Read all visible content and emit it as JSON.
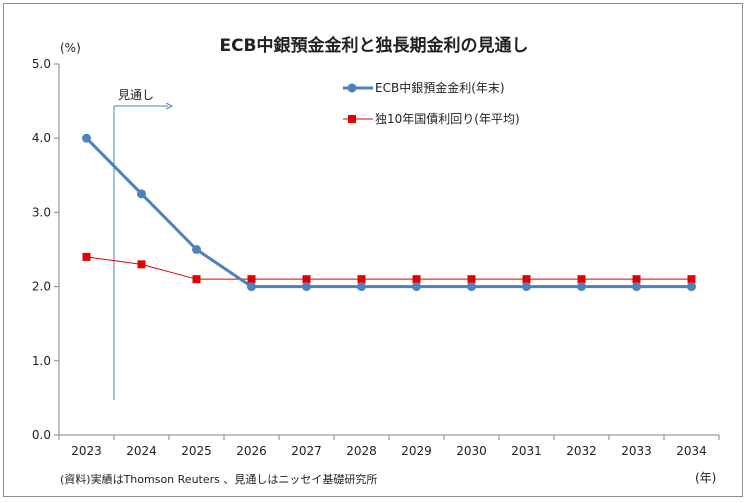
{
  "chart_data": {
    "type": "line",
    "title": "ECB中銀預金金利と独長期金利の見通し",
    "y_unit": "(%)",
    "x_unit": "(年)",
    "categories": [
      "2023",
      "2024",
      "2025",
      "2026",
      "2027",
      "2028",
      "2029",
      "2030",
      "2031",
      "2032",
      "2033",
      "2034"
    ],
    "ylim": [
      0,
      5
    ],
    "yticks": [
      "0.0",
      "1.0",
      "2.0",
      "3.0",
      "4.0",
      "5.0"
    ],
    "series": [
      {
        "name": "ECB中銀預金金利(年末)",
        "color": "#4f81bd",
        "marker": "circle",
        "values": [
          4.0,
          3.25,
          2.5,
          2.0,
          2.0,
          2.0,
          2.0,
          2.0,
          2.0,
          2.0,
          2.0,
          2.0
        ]
      },
      {
        "name": "独10年国債利回り(年平均)",
        "color": "#e30000",
        "marker": "square",
        "values": [
          2.4,
          2.3,
          2.1,
          2.1,
          2.1,
          2.1,
          2.1,
          2.1,
          2.1,
          2.1,
          2.1,
          2.1
        ]
      }
    ],
    "forecast_label": "見通し",
    "grid": false,
    "legend_position": "top-right",
    "source_note": "(資料)実績はThomson Reuters 、見通しはニッセイ基礎研究所"
  }
}
